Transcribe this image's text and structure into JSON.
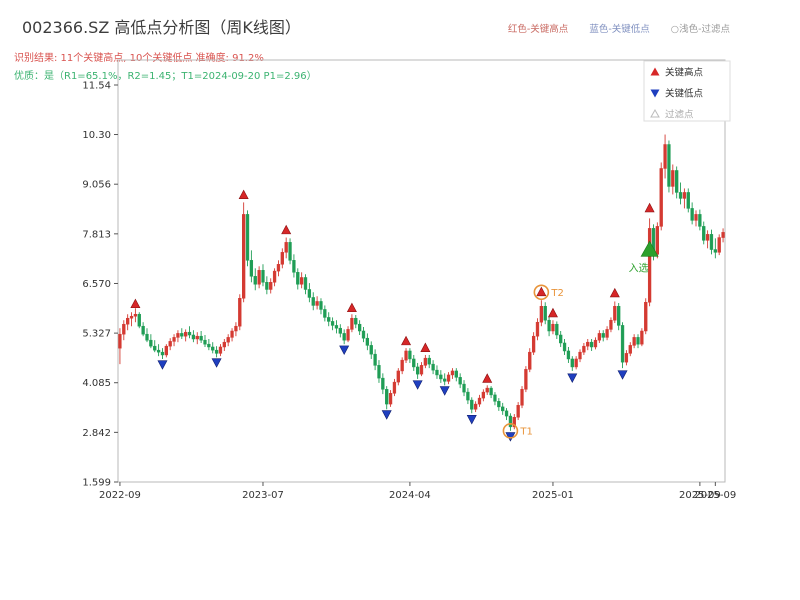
{
  "header": {
    "title": "002366.SZ 高低点分析图（周K线图）",
    "legend_right": [
      {
        "label": "红色-关键高点",
        "color": "#c96a62"
      },
      {
        "label": "蓝色-关键低点",
        "color": "#8191c0"
      },
      {
        "label": "○浅色-过滤点",
        "color": "#9a9a9a"
      }
    ],
    "result_line": "识别结果: 11个关键高点, 10个关键低点  准确度: 91.2%",
    "result_color": "#d9534f",
    "quality_line": "优质：是（R1=65.1%，R2=1.45；T1=2024-09-20 P1=2.96）",
    "quality_color": "#3cb371"
  },
  "chart_data": {
    "type": "candlestick",
    "symbol": "002366.SZ",
    "period": "weekly",
    "title": "002366.SZ 高低点分析图（周K线图）",
    "ylim": [
      1.599,
      11.54
    ],
    "y_ticks": [
      "11.54",
      "10.30",
      "9.056",
      "7.813",
      "6.570",
      "5.327",
      "4.085",
      "2.842",
      "1.599"
    ],
    "x_ticks": [
      {
        "label": "2022-09",
        "week": 0
      },
      {
        "label": "2023-07",
        "week": 37
      },
      {
        "label": "2024-04",
        "week": 75
      },
      {
        "label": "2025-01",
        "week": 112
      },
      {
        "label": "2025-09",
        "week": 150
      },
      {
        "label": "2025-09",
        "week": 154
      }
    ],
    "colors": {
      "up": "#d43a32",
      "down": "#1f9d55",
      "key_high": "#d62728",
      "key_low": "#1f3fbf",
      "filtered": "#bbbbbb",
      "entry": "#2ca02c",
      "circle": "#e8943a"
    },
    "legend": {
      "items": [
        {
          "label": "关键高点",
          "marker": "up-triangle",
          "color": "#d62728",
          "text_color": "#333333"
        },
        {
          "label": "关键低点",
          "marker": "down-triangle",
          "color": "#1f3fbf",
          "text_color": "#333333"
        },
        {
          "label": "过滤点",
          "marker": "hollow-up-triangle",
          "color": "#bbbbbb",
          "text_color": "#aaaaaa"
        }
      ]
    },
    "candles": [
      [
        4.95,
        5.45,
        4.55,
        5.3
      ],
      [
        5.3,
        5.65,
        5.15,
        5.55
      ],
      [
        5.55,
        5.8,
        5.4,
        5.7
      ],
      [
        5.7,
        5.85,
        5.5,
        5.75
      ],
      [
        5.75,
        5.95,
        5.6,
        5.8
      ],
      [
        5.8,
        5.85,
        5.45,
        5.5
      ],
      [
        5.5,
        5.6,
        5.25,
        5.3
      ],
      [
        5.3,
        5.45,
        5.1,
        5.15
      ],
      [
        5.15,
        5.3,
        4.95,
        5.0
      ],
      [
        5.0,
        5.15,
        4.85,
        4.9
      ],
      [
        4.9,
        5.05,
        4.75,
        4.85
      ],
      [
        4.85,
        4.95,
        4.68,
        4.78
      ],
      [
        4.78,
        5.05,
        4.72,
        5.0
      ],
      [
        5.0,
        5.2,
        4.9,
        5.12
      ],
      [
        5.12,
        5.3,
        5.0,
        5.22
      ],
      [
        5.22,
        5.4,
        5.1,
        5.32
      ],
      [
        5.32,
        5.45,
        5.18,
        5.25
      ],
      [
        5.25,
        5.42,
        5.12,
        5.35
      ],
      [
        5.35,
        5.5,
        5.2,
        5.28
      ],
      [
        5.28,
        5.4,
        5.1,
        5.18
      ],
      [
        5.18,
        5.35,
        5.05,
        5.25
      ],
      [
        5.25,
        5.38,
        5.08,
        5.15
      ],
      [
        5.15,
        5.28,
        4.98,
        5.05
      ],
      [
        5.05,
        5.18,
        4.9,
        4.98
      ],
      [
        4.98,
        5.1,
        4.82,
        4.9
      ],
      [
        4.9,
        5.0,
        4.72,
        4.82
      ],
      [
        4.82,
        5.05,
        4.75,
        4.98
      ],
      [
        4.98,
        5.18,
        4.88,
        5.1
      ],
      [
        5.1,
        5.3,
        5.0,
        5.22
      ],
      [
        5.22,
        5.45,
        5.12,
        5.38
      ],
      [
        5.38,
        5.6,
        5.25,
        5.5
      ],
      [
        5.5,
        6.3,
        5.4,
        6.2
      ],
      [
        6.2,
        8.6,
        6.1,
        8.3
      ],
      [
        8.3,
        8.4,
        7.0,
        7.15
      ],
      [
        7.15,
        7.4,
        6.6,
        6.75
      ],
      [
        6.75,
        6.95,
        6.4,
        6.55
      ],
      [
        6.55,
        7.0,
        6.45,
        6.9
      ],
      [
        6.9,
        7.05,
        6.5,
        6.6
      ],
      [
        6.6,
        6.75,
        6.3,
        6.42
      ],
      [
        6.42,
        6.7,
        6.32,
        6.6
      ],
      [
        6.6,
        6.95,
        6.5,
        6.88
      ],
      [
        6.88,
        7.15,
        6.75,
        7.05
      ],
      [
        7.05,
        7.45,
        6.95,
        7.35
      ],
      [
        7.35,
        7.72,
        7.2,
        7.6
      ],
      [
        7.6,
        7.7,
        7.05,
        7.15
      ],
      [
        7.15,
        7.3,
        6.72,
        6.85
      ],
      [
        6.85,
        6.95,
        6.42,
        6.55
      ],
      [
        6.55,
        6.85,
        6.45,
        6.72
      ],
      [
        6.72,
        6.8,
        6.3,
        6.42
      ],
      [
        6.42,
        6.58,
        6.1,
        6.22
      ],
      [
        6.22,
        6.35,
        5.9,
        6.02
      ],
      [
        6.02,
        6.25,
        5.92,
        6.12
      ],
      [
        6.12,
        6.2,
        5.8,
        5.92
      ],
      [
        5.92,
        6.02,
        5.62,
        5.72
      ],
      [
        5.72,
        5.85,
        5.5,
        5.62
      ],
      [
        5.62,
        5.72,
        5.4,
        5.52
      ],
      [
        5.52,
        5.65,
        5.32,
        5.45
      ],
      [
        5.45,
        5.55,
        5.22,
        5.32
      ],
      [
        5.32,
        5.42,
        5.05,
        5.15
      ],
      [
        5.15,
        5.5,
        5.1,
        5.42
      ],
      [
        5.42,
        5.8,
        5.35,
        5.7
      ],
      [
        5.7,
        5.78,
        5.45,
        5.55
      ],
      [
        5.55,
        5.65,
        5.28,
        5.38
      ],
      [
        5.38,
        5.48,
        5.1,
        5.2
      ],
      [
        5.2,
        5.32,
        4.9,
        5.02
      ],
      [
        5.02,
        5.12,
        4.68,
        4.8
      ],
      [
        4.8,
        4.92,
        4.4,
        4.52
      ],
      [
        4.52,
        4.65,
        4.08,
        4.2
      ],
      [
        4.2,
        4.32,
        3.8,
        3.92
      ],
      [
        3.92,
        4.0,
        3.42,
        3.55
      ],
      [
        3.55,
        3.9,
        3.48,
        3.82
      ],
      [
        3.82,
        4.18,
        3.75,
        4.1
      ],
      [
        4.1,
        4.45,
        4.02,
        4.38
      ],
      [
        4.38,
        4.72,
        4.3,
        4.65
      ],
      [
        4.65,
        4.95,
        4.58,
        4.88
      ],
      [
        4.88,
        4.95,
        4.58,
        4.68
      ],
      [
        4.68,
        4.78,
        4.38,
        4.48
      ],
      [
        4.48,
        4.58,
        4.18,
        4.3
      ],
      [
        4.3,
        4.6,
        4.25,
        4.52
      ],
      [
        4.52,
        4.78,
        4.45,
        4.7
      ],
      [
        4.7,
        4.78,
        4.45,
        4.55
      ],
      [
        4.55,
        4.65,
        4.3,
        4.4
      ],
      [
        4.4,
        4.52,
        4.18,
        4.28
      ],
      [
        4.28,
        4.4,
        4.08,
        4.18
      ],
      [
        4.18,
        4.32,
        4.02,
        4.12
      ],
      [
        4.12,
        4.35,
        4.05,
        4.28
      ],
      [
        4.28,
        4.45,
        4.18,
        4.38
      ],
      [
        4.38,
        4.45,
        4.12,
        4.22
      ],
      [
        4.22,
        4.32,
        3.95,
        4.05
      ],
      [
        4.05,
        4.15,
        3.75,
        3.85
      ],
      [
        3.85,
        3.95,
        3.55,
        3.65
      ],
      [
        3.65,
        3.72,
        3.32,
        3.42
      ],
      [
        3.42,
        3.62,
        3.35,
        3.55
      ],
      [
        3.55,
        3.78,
        3.48,
        3.7
      ],
      [
        3.7,
        3.92,
        3.62,
        3.85
      ],
      [
        3.85,
        4.02,
        3.78,
        3.95
      ],
      [
        3.95,
        4.0,
        3.7,
        3.78
      ],
      [
        3.78,
        3.85,
        3.52,
        3.62
      ],
      [
        3.62,
        3.7,
        3.38,
        3.48
      ],
      [
        3.48,
        3.58,
        3.28,
        3.38
      ],
      [
        3.38,
        3.45,
        3.15,
        3.25
      ],
      [
        3.25,
        3.32,
        2.88,
        2.98
      ],
      [
        2.98,
        3.3,
        2.92,
        3.22
      ],
      [
        3.22,
        3.6,
        3.15,
        3.52
      ],
      [
        3.52,
        4.0,
        3.45,
        3.92
      ],
      [
        3.92,
        4.5,
        3.85,
        4.42
      ],
      [
        4.42,
        4.95,
        4.35,
        4.85
      ],
      [
        4.85,
        5.35,
        4.78,
        5.25
      ],
      [
        5.25,
        5.7,
        5.15,
        5.6
      ],
      [
        5.6,
        6.15,
        5.5,
        6.0
      ],
      [
        6.0,
        6.1,
        5.55,
        5.65
      ],
      [
        5.65,
        5.75,
        5.25,
        5.38
      ],
      [
        5.38,
        5.65,
        5.3,
        5.55
      ],
      [
        5.55,
        5.62,
        5.18,
        5.28
      ],
      [
        5.28,
        5.38,
        4.98,
        5.08
      ],
      [
        5.08,
        5.18,
        4.78,
        4.88
      ],
      [
        4.88,
        4.98,
        4.58,
        4.68
      ],
      [
        4.68,
        4.75,
        4.38,
        4.48
      ],
      [
        4.48,
        4.75,
        4.42,
        4.68
      ],
      [
        4.68,
        4.92,
        4.6,
        4.85
      ],
      [
        4.85,
        5.08,
        4.78,
        5.0
      ],
      [
        5.0,
        5.18,
        4.9,
        5.1
      ],
      [
        5.1,
        5.18,
        4.88,
        4.98
      ],
      [
        4.98,
        5.22,
        4.92,
        5.15
      ],
      [
        5.15,
        5.4,
        5.08,
        5.32
      ],
      [
        5.32,
        5.4,
        5.12,
        5.22
      ],
      [
        5.22,
        5.5,
        5.15,
        5.42
      ],
      [
        5.42,
        5.72,
        5.35,
        5.65
      ],
      [
        5.65,
        6.12,
        5.58,
        6.0
      ],
      [
        6.0,
        6.08,
        5.4,
        5.52
      ],
      [
        5.52,
        5.6,
        4.45,
        4.6
      ],
      [
        4.6,
        4.9,
        4.52,
        4.82
      ],
      [
        4.82,
        5.1,
        4.75,
        5.02
      ],
      [
        5.02,
        5.3,
        4.95,
        5.22
      ],
      [
        5.22,
        5.3,
        4.95,
        5.05
      ],
      [
        5.05,
        5.45,
        5.0,
        5.38
      ],
      [
        5.38,
        6.2,
        5.3,
        6.1
      ],
      [
        6.1,
        8.2,
        6.0,
        7.95
      ],
      [
        7.95,
        8.05,
        7.15,
        7.3
      ],
      [
        7.3,
        8.1,
        7.2,
        8.0
      ],
      [
        8.0,
        9.6,
        7.9,
        9.45
      ],
      [
        9.45,
        10.3,
        9.2,
        10.05
      ],
      [
        10.05,
        10.15,
        8.85,
        9.0
      ],
      [
        9.0,
        9.55,
        8.8,
        9.4
      ],
      [
        9.4,
        9.5,
        8.7,
        8.85
      ],
      [
        8.85,
        9.1,
        8.55,
        8.7
      ],
      [
        8.7,
        8.95,
        8.45,
        8.85
      ],
      [
        8.85,
        8.95,
        8.35,
        8.45
      ],
      [
        8.45,
        8.6,
        8.05,
        8.15
      ],
      [
        8.15,
        8.4,
        8.0,
        8.3
      ],
      [
        8.3,
        8.42,
        7.9,
        8.0
      ],
      [
        8.0,
        8.12,
        7.55,
        7.65
      ],
      [
        7.65,
        7.9,
        7.45,
        7.8
      ],
      [
        7.8,
        7.92,
        7.3,
        7.42
      ],
      [
        7.42,
        7.7,
        7.2,
        7.35
      ],
      [
        7.35,
        7.8,
        7.28,
        7.72
      ],
      [
        7.72,
        7.95,
        7.6,
        7.85
      ]
    ],
    "key_highs": [
      {
        "week": 4,
        "value": 6.05
      },
      {
        "week": 32,
        "value": 8.78
      },
      {
        "week": 43,
        "value": 7.9
      },
      {
        "week": 60,
        "value": 5.95
      },
      {
        "week": 74,
        "value": 5.12
      },
      {
        "week": 79,
        "value": 4.95
      },
      {
        "week": 95,
        "value": 4.18
      },
      {
        "week": 109,
        "value": 6.35
      },
      {
        "week": 112,
        "value": 5.82
      },
      {
        "week": 128,
        "value": 6.32
      },
      {
        "week": 137,
        "value": 8.45
      }
    ],
    "key_lows": [
      {
        "week": 11,
        "value": 4.55
      },
      {
        "week": 25,
        "value": 4.6
      },
      {
        "week": 58,
        "value": 4.92
      },
      {
        "week": 69,
        "value": 3.3
      },
      {
        "week": 77,
        "value": 4.05
      },
      {
        "week": 84,
        "value": 3.9
      },
      {
        "week": 91,
        "value": 3.18
      },
      {
        "week": 101,
        "value": 2.75
      },
      {
        "week": 117,
        "value": 4.22
      },
      {
        "week": 130,
        "value": 4.3
      }
    ],
    "annotations": [
      {
        "type": "circle",
        "week": 101,
        "value": 2.88,
        "label": "T1"
      },
      {
        "type": "circle",
        "week": 109,
        "value": 6.35,
        "label": "T2"
      },
      {
        "type": "entry",
        "week": 137,
        "value": 7.4,
        "label": "入选"
      }
    ]
  }
}
